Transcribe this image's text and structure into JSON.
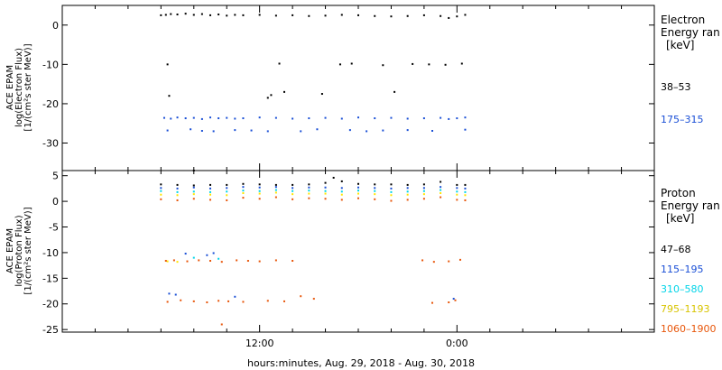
{
  "chart_data": [
    {
      "type": "scatter",
      "panel": "electron",
      "ylabel_lines": [
        "ACE EPAM",
        "log(Electron Flux)",
        "[1/(cm²s ster MeV)]"
      ],
      "ylim": [
        -37,
        5
      ],
      "yticks": [
        0,
        -10,
        -20,
        -30
      ],
      "ytick_labels": [
        "0",
        "-10",
        "-20",
        "-30"
      ],
      "legend_title_lines": [
        "Electron",
        "Energy ran",
        "[keV]"
      ],
      "series": [
        {
          "name": "38–53",
          "color": "#000000",
          "x": [
            18,
            18.3,
            18.6,
            19.0,
            19.5,
            20,
            20.5,
            21,
            21.5,
            22,
            22.5,
            23,
            24,
            25,
            26,
            27,
            28,
            29,
            30,
            31,
            32,
            33,
            34,
            35,
            35.5,
            36,
            36.5,
            18.4,
            25.2,
            28.9,
            29.6,
            31.5,
            33.3,
            34.3,
            35.3,
            36.3,
            18.5,
            24.5,
            24.7,
            25.5,
            27.8,
            32.2,
            20.0
          ],
          "y": [
            2.5,
            2.6,
            2.8,
            2.7,
            2.9,
            2.6,
            2.8,
            2.5,
            2.7,
            2.4,
            2.6,
            2.5,
            2.6,
            2.4,
            2.5,
            2.3,
            2.4,
            2.6,
            2.5,
            2.3,
            2.2,
            2.3,
            2.5,
            2.3,
            1.8,
            2.2,
            2.6,
            -10,
            -9.8,
            -10,
            -9.8,
            -10.2,
            -9.9,
            -10,
            -10.1,
            -9.8,
            -18,
            -18.5,
            -17.8,
            -17,
            -17.5,
            -17,
            -37
          ]
        },
        {
          "name": "175–315",
          "color": "#1a4fd6",
          "x": [
            18.2,
            18.6,
            19.0,
            19.5,
            20.0,
            20.5,
            21.0,
            21.5,
            22.0,
            22.5,
            23.0,
            24.0,
            25.0,
            26.0,
            27.0,
            28.0,
            29.0,
            30.0,
            31.0,
            32.0,
            33.0,
            34.0,
            35.0,
            35.5,
            36.0,
            36.5,
            18.4,
            19.8,
            20.5,
            21.2,
            22.5,
            23.5,
            24.5,
            26.5,
            27.5,
            29.5,
            30.5,
            31.5,
            33.0,
            34.5,
            36.5
          ],
          "y": [
            -23.6,
            -23.8,
            -23.5,
            -23.7,
            -23.6,
            -23.9,
            -23.5,
            -23.7,
            -23.6,
            -23.8,
            -23.7,
            -23.5,
            -23.6,
            -23.8,
            -23.7,
            -23.6,
            -23.8,
            -23.5,
            -23.7,
            -23.6,
            -23.8,
            -23.7,
            -23.6,
            -23.9,
            -23.7,
            -23.5,
            -26.8,
            -26.5,
            -26.9,
            -27,
            -26.7,
            -26.8,
            -27,
            -27,
            -26.5,
            -26.7,
            -27,
            -26.8,
            -26.7,
            -26.9,
            -26.6
          ]
        }
      ]
    },
    {
      "type": "scatter",
      "panel": "proton",
      "ylabel_lines": [
        "ACE EPAM",
        "log(Proton Flux)",
        "[1/(cm²s ster MeV)]"
      ],
      "ylim": [
        -25.5,
        6
      ],
      "yticks": [
        5,
        0,
        -5,
        -10,
        -15,
        -20,
        -25
      ],
      "ytick_labels": [
        "5",
        "0",
        "-5",
        "-10",
        "-15",
        "-20",
        "-25"
      ],
      "legend_title_lines": [
        "Proton",
        "Energy ran",
        "[keV]"
      ],
      "series": [
        {
          "name": "47–68",
          "color": "#000000",
          "x": [
            18,
            19,
            20,
            21,
            22,
            23,
            24,
            25,
            26,
            27,
            28,
            28.5,
            29,
            30,
            31,
            32,
            33,
            34,
            35,
            36,
            36.5
          ],
          "y": [
            3.3,
            3.2,
            3.1,
            3.2,
            3.2,
            3.4,
            3.3,
            3.2,
            3.2,
            3.3,
            3.6,
            4.6,
            3.9,
            3.4,
            3.3,
            3.3,
            3.2,
            3.3,
            3.8,
            3.2,
            3.2
          ]
        },
        {
          "name": "115–195",
          "color": "#1a4fd6",
          "x": [
            18,
            19,
            20,
            21,
            22,
            23,
            24,
            25,
            26,
            27,
            28,
            29,
            30,
            31,
            32,
            33,
            34,
            35,
            36,
            36.5,
            19.5,
            20.8,
            21.2,
            18.5,
            18.9,
            22.5,
            35.8
          ],
          "y": [
            2.6,
            2.5,
            2.7,
            2.5,
            2.6,
            2.8,
            2.7,
            2.8,
            2.6,
            2.7,
            2.7,
            2.6,
            2.7,
            2.6,
            2.5,
            2.6,
            2.6,
            2.8,
            2.6,
            2.5,
            -10.2,
            -10.5,
            -10.1,
            -18,
            -18.2,
            -18.6,
            -19
          ]
        },
        {
          "name": "310–580",
          "color": "#00d4e8",
          "x": [
            18,
            19,
            20,
            21,
            22,
            23,
            24,
            25,
            26,
            27,
            28,
            29,
            30,
            31,
            32,
            33,
            34,
            35,
            36,
            36.5,
            20,
            21.5
          ],
          "y": [
            2.0,
            1.8,
            1.9,
            1.8,
            1.9,
            2.1,
            2.0,
            2.2,
            2.0,
            2.1,
            2.0,
            1.9,
            2.1,
            2.0,
            1.8,
            1.9,
            2.0,
            2.2,
            1.9,
            1.8,
            -11,
            -11.2
          ]
        },
        {
          "name": "795–1193",
          "color": "#ffe600",
          "x": [
            18,
            19,
            20,
            21,
            22,
            23,
            24,
            25,
            26,
            27,
            28,
            29,
            30,
            31,
            32,
            33,
            34,
            35,
            36,
            36.5,
            18.4,
            19.0
          ],
          "y": [
            1.3,
            1.2,
            1.4,
            1.3,
            1.2,
            1.6,
            1.5,
            1.7,
            1.4,
            1.5,
            1.5,
            1.3,
            1.5,
            1.4,
            1.2,
            1.3,
            1.4,
            1.6,
            1.3,
            1.2,
            -11.7,
            -11.8
          ]
        },
        {
          "name": "1060–1900",
          "color": "#e8560a",
          "x": [
            18,
            19,
            20,
            21,
            22,
            23,
            24,
            25,
            26,
            27,
            28,
            29,
            30,
            31,
            32,
            33,
            34,
            35,
            36,
            36.5,
            18.3,
            18.8,
            19.6,
            20.3,
            21.0,
            21.7,
            22.6,
            23.3,
            24.0,
            25.0,
            26.0,
            33.9,
            34.6,
            35.5,
            36.2,
            18.4,
            19.2,
            20.0,
            20.8,
            21.5,
            22.1,
            23.0,
            24.5,
            25.5,
            26.5,
            27.3,
            34.5,
            35.5,
            35.9,
            21.7
          ],
          "y": [
            0.4,
            0.2,
            0.5,
            0.3,
            0.2,
            0.7,
            0.5,
            0.8,
            0.4,
            0.6,
            0.5,
            0.3,
            0.6,
            0.4,
            0.1,
            0.3,
            0.5,
            0.8,
            0.3,
            0.2,
            -11.6,
            -11.5,
            -11.7,
            -11.5,
            -11.6,
            -11.8,
            -11.5,
            -11.6,
            -11.7,
            -11.5,
            -11.6,
            -11.5,
            -11.8,
            -11.7,
            -11.4,
            -19.6,
            -19.3,
            -19.5,
            -19.7,
            -19.4,
            -19.5,
            -19.6,
            -19.4,
            -19.5,
            -18.5,
            -19.0,
            -19.8,
            -19.7,
            -19.3,
            -24
          ]
        }
      ]
    }
  ],
  "x_axis": {
    "xlim": [
      12,
      48
    ],
    "tick_hours": [
      24,
      36
    ],
    "tick_labels": [
      "12:00",
      "0:00"
    ],
    "minor_tick_hours": [
      14,
      16,
      18,
      20,
      22,
      26,
      28,
      30,
      32,
      34,
      38,
      40,
      42,
      44,
      46
    ],
    "label": "hours:minutes, Aug. 29, 2018 - Aug. 30, 2018"
  },
  "legend_electron": {
    "title": "Electron",
    "subtitle": "Energy ran",
    "unit": "[keV]",
    "items": [
      {
        "label": "38–53",
        "color": "#000000"
      },
      {
        "label": "175–315",
        "color": "#1a4fd6"
      }
    ]
  },
  "legend_proton": {
    "title": "Proton",
    "subtitle": "Energy ran",
    "unit": "[keV]",
    "items": [
      {
        "label": "47–68",
        "color": "#000000"
      },
      {
        "label": "115–195",
        "color": "#1a4fd6"
      },
      {
        "label": "310–580",
        "color": "#00d4e8"
      },
      {
        "label": "795–1193",
        "color": "#d8c400"
      },
      {
        "label": "1060–1900",
        "color": "#e8560a"
      }
    ]
  }
}
